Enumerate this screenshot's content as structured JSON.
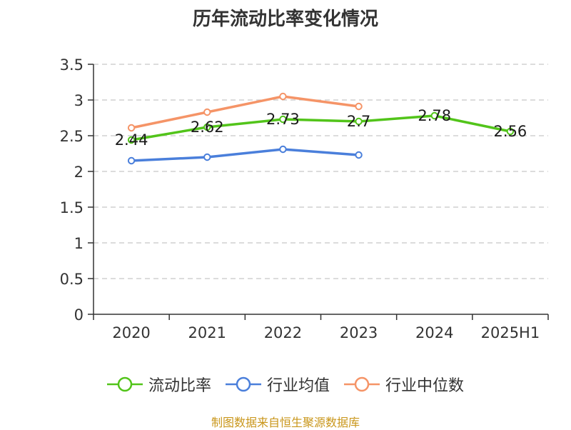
{
  "title": "历年流动比率变化情况",
  "source": "制图数据来自恒生聚源数据库",
  "chart_data": {
    "type": "line",
    "title": "历年流动比率变化情况",
    "categories": [
      "2020",
      "2021",
      "2022",
      "2023",
      "2024",
      "2025H1"
    ],
    "ylim": [
      0,
      3.5
    ],
    "yticks": [
      "0",
      "0.5",
      "1",
      "1.5",
      "2",
      "2.5",
      "3",
      "3.5"
    ],
    "grid": true,
    "legend_position": "bottom",
    "series": [
      {
        "name": "流动比率",
        "color": "#52c41a",
        "values": [
          2.44,
          2.62,
          2.73,
          2.7,
          2.78,
          2.56
        ],
        "labels": [
          "2.44",
          "2.62",
          "2.73",
          "2.7",
          "2.78",
          "2.56"
        ]
      },
      {
        "name": "行业均值",
        "color": "#4a7fdb",
        "values": [
          2.15,
          2.2,
          2.31,
          2.23,
          null,
          null
        ]
      },
      {
        "name": "行业中位数",
        "color": "#f59467",
        "values": [
          2.61,
          2.83,
          3.05,
          2.91,
          null,
          null
        ]
      }
    ]
  }
}
